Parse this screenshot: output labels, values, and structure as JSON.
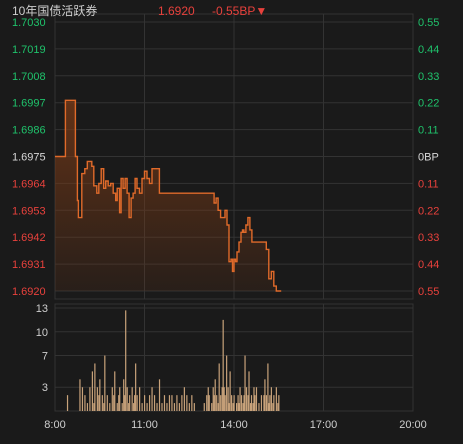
{
  "header": {
    "name": "10年国债活跃券",
    "price": "1.6920",
    "change": "-0.55BP▼"
  },
  "colors": {
    "background": "#1a1a1a",
    "grid": "#333333",
    "up": "#1fc26b",
    "down": "#e8413c",
    "neutral": "#d8d8d8",
    "price_line": "#e06a2a",
    "price_fill": "#7a3a16",
    "volume_bar": "#c8a27a",
    "axis_text": "#cfcfcf"
  },
  "chart_data": [
    {
      "type": "line",
      "title": "",
      "xlabel": "",
      "ylabel": "",
      "ylim": [
        1.692,
        1.703
      ],
      "x_range": [
        "8:00",
        "20:00"
      ],
      "baseline": 1.6975,
      "y_ticks_left": [
        "1.7030",
        "1.7019",
        "1.7008",
        "1.6997",
        "1.6986",
        "1.6975",
        "1.6964",
        "1.6953",
        "1.6942",
        "1.6931",
        "1.6920"
      ],
      "y_ticks_right": [
        "0.55",
        "0.44",
        "0.33",
        "0.22",
        "0.11",
        "0BP",
        "0.11",
        "0.22",
        "0.33",
        "0.44",
        "0.55"
      ],
      "grid": true,
      "series": [
        {
          "points": [
            [
              "8:00",
              1.6975
            ],
            [
              "8:20",
              1.6975
            ],
            [
              "8:21",
              1.6998
            ],
            [
              "8:40",
              1.6998
            ],
            [
              "8:41",
              1.6975
            ],
            [
              "8:45",
              1.6957
            ],
            [
              "8:47",
              1.695
            ],
            [
              "8:51",
              1.695
            ],
            [
              "8:54",
              1.6968
            ],
            [
              "9:00",
              1.697
            ],
            [
              "9:05",
              1.6973
            ],
            [
              "9:14",
              1.6971
            ],
            [
              "9:18",
              1.6963
            ],
            [
              "9:24",
              1.696
            ],
            [
              "9:28",
              1.6964
            ],
            [
              "9:33",
              1.697
            ],
            [
              "9:38",
              1.6962
            ],
            [
              "9:42",
              1.6965
            ],
            [
              "9:47",
              1.6963
            ],
            [
              "9:52",
              1.6964
            ],
            [
              "9:57",
              1.696
            ],
            [
              "10:02",
              1.6957
            ],
            [
              "10:05",
              1.6962
            ],
            [
              "10:10",
              1.6952
            ],
            [
              "10:13",
              1.6966
            ],
            [
              "10:17",
              1.6962
            ],
            [
              "10:21",
              1.6966
            ],
            [
              "10:25",
              1.696
            ],
            [
              "10:29",
              1.695
            ],
            [
              "10:33",
              1.6958
            ],
            [
              "10:37",
              1.696
            ],
            [
              "10:41",
              1.6966
            ],
            [
              "10:45",
              1.6962
            ],
            [
              "10:50",
              1.696
            ],
            [
              "10:55",
              1.6966
            ],
            [
              "11:00",
              1.6969
            ],
            [
              "11:05",
              1.6966
            ],
            [
              "11:10",
              1.6964
            ],
            [
              "11:15",
              1.697
            ],
            [
              "11:25",
              1.697
            ],
            [
              "11:30",
              1.696
            ],
            [
              "11:45",
              1.696
            ],
            [
              "12:00",
              1.696
            ],
            [
              "12:30",
              1.696
            ],
            [
              "13:00",
              1.696
            ],
            [
              "13:15",
              1.696
            ],
            [
              "13:20",
              1.6956
            ],
            [
              "13:24",
              1.6958
            ],
            [
              "13:28",
              1.6953
            ],
            [
              "13:33",
              1.695
            ],
            [
              "13:38",
              1.695
            ],
            [
              "13:42",
              1.6953
            ],
            [
              "13:46",
              1.6947
            ],
            [
              "13:50",
              1.6932
            ],
            [
              "13:54",
              1.6933
            ],
            [
              "13:57",
              1.6928
            ],
            [
              "14:00",
              1.6933
            ],
            [
              "14:03",
              1.6932
            ],
            [
              "14:06",
              1.6936
            ],
            [
              "14:10",
              1.694
            ],
            [
              "14:14",
              1.6944
            ],
            [
              "14:17",
              1.6945
            ],
            [
              "14:20",
              1.6944
            ],
            [
              "14:24",
              1.6947
            ],
            [
              "14:28",
              1.695
            ],
            [
              "14:32",
              1.6945
            ],
            [
              "14:36",
              1.694
            ],
            [
              "14:40",
              1.694
            ],
            [
              "14:50",
              1.694
            ],
            [
              "15:00",
              1.694
            ],
            [
              "15:05",
              1.6937
            ],
            [
              "15:10",
              1.6925
            ],
            [
              "15:15",
              1.6928
            ],
            [
              "15:20",
              1.6922
            ],
            [
              "15:25",
              1.692
            ],
            [
              "15:35",
              1.692
            ]
          ]
        }
      ]
    },
    {
      "type": "bar",
      "title": "",
      "xlabel": "",
      "ylabel": "",
      "ylim": [
        0,
        13
      ],
      "y_ticks": [
        "13",
        "10",
        "7",
        "3"
      ],
      "x_ticks": [
        "8:00",
        "11:00",
        "14:00",
        "17:00",
        "20:00"
      ],
      "grid": true,
      "series": [
        {
          "points": [
            [
              "8:25",
              2
            ],
            [
              "8:50",
              4
            ],
            [
              "8:55",
              3
            ],
            [
              "9:00",
              2
            ],
            [
              "9:05",
              1
            ],
            [
              "9:10",
              3
            ],
            [
              "9:15",
              5
            ],
            [
              "9:18",
              1
            ],
            [
              "9:20",
              6
            ],
            [
              "9:25",
              3
            ],
            [
              "9:28",
              2
            ],
            [
              "9:30",
              4
            ],
            [
              "9:35",
              2
            ],
            [
              "9:38",
              1
            ],
            [
              "9:40",
              7
            ],
            [
              "9:45",
              2
            ],
            [
              "9:50",
              1
            ],
            [
              "9:55",
              3
            ],
            [
              "9:58",
              2
            ],
            [
              "10:00",
              5
            ],
            [
              "10:05",
              1
            ],
            [
              "10:08",
              2
            ],
            [
              "10:10",
              3
            ],
            [
              "10:15",
              1
            ],
            [
              "10:18",
              4
            ],
            [
              "10:20",
              2
            ],
            [
              "10:22",
              12.7
            ],
            [
              "10:25",
              3
            ],
            [
              "10:28",
              1
            ],
            [
              "10:30",
              2
            ],
            [
              "10:35",
              3
            ],
            [
              "10:38",
              1
            ],
            [
              "10:40",
              2
            ],
            [
              "10:42",
              6
            ],
            [
              "10:45",
              2
            ],
            [
              "10:50",
              3
            ],
            [
              "10:55",
              1
            ],
            [
              "11:00",
              2
            ],
            [
              "11:05",
              1
            ],
            [
              "11:10",
              2
            ],
            [
              "11:15",
              3
            ],
            [
              "11:20",
              2
            ],
            [
              "11:25",
              1
            ],
            [
              "11:30",
              4
            ],
            [
              "11:35",
              1
            ],
            [
              "11:40",
              2
            ],
            [
              "11:45",
              1
            ],
            [
              "11:50",
              2
            ],
            [
              "11:55",
              2
            ],
            [
              "12:00",
              1
            ],
            [
              "12:05",
              2
            ],
            [
              "12:10",
              1
            ],
            [
              "12:15",
              2
            ],
            [
              "12:20",
              3
            ],
            [
              "12:25",
              2
            ],
            [
              "12:30",
              1
            ],
            [
              "12:35",
              2
            ],
            [
              "12:40",
              1
            ],
            [
              "13:00",
              1
            ],
            [
              "13:05",
              2
            ],
            [
              "13:08",
              3
            ],
            [
              "13:10",
              2
            ],
            [
              "13:15",
              1
            ],
            [
              "13:18",
              3
            ],
            [
              "13:20",
              2
            ],
            [
              "13:22",
              4
            ],
            [
              "13:25",
              2
            ],
            [
              "13:28",
              1
            ],
            [
              "13:30",
              6
            ],
            [
              "13:33",
              2
            ],
            [
              "13:36",
              3
            ],
            [
              "13:38",
              11.5
            ],
            [
              "13:40",
              3
            ],
            [
              "13:42",
              2
            ],
            [
              "13:45",
              7
            ],
            [
              "13:48",
              3
            ],
            [
              "13:50",
              1
            ],
            [
              "13:52",
              5
            ],
            [
              "13:55",
              2
            ],
            [
              "13:58",
              1
            ],
            [
              "14:00",
              2
            ],
            [
              "14:05",
              1
            ],
            [
              "14:08",
              2
            ],
            [
              "14:10",
              1
            ],
            [
              "14:12",
              3
            ],
            [
              "14:15",
              2
            ],
            [
              "14:18",
              1
            ],
            [
              "14:20",
              2
            ],
            [
              "14:22",
              7
            ],
            [
              "14:25",
              3
            ],
            [
              "14:28",
              2
            ],
            [
              "14:30",
              5
            ],
            [
              "14:33",
              1
            ],
            [
              "14:35",
              2
            ],
            [
              "14:38",
              1
            ],
            [
              "14:40",
              3
            ],
            [
              "14:42",
              2
            ],
            [
              "14:45",
              3
            ],
            [
              "14:50",
              1
            ],
            [
              "14:55",
              2
            ],
            [
              "15:00",
              2
            ],
            [
              "15:02",
              4
            ],
            [
              "15:05",
              2
            ],
            [
              "15:08",
              6
            ],
            [
              "15:10",
              1
            ],
            [
              "15:12",
              2
            ],
            [
              "15:15",
              3
            ],
            [
              "15:18",
              1
            ],
            [
              "15:20",
              2
            ],
            [
              "15:25",
              3
            ],
            [
              "15:28",
              1
            ],
            [
              "15:30",
              2
            ]
          ]
        }
      ]
    }
  ]
}
